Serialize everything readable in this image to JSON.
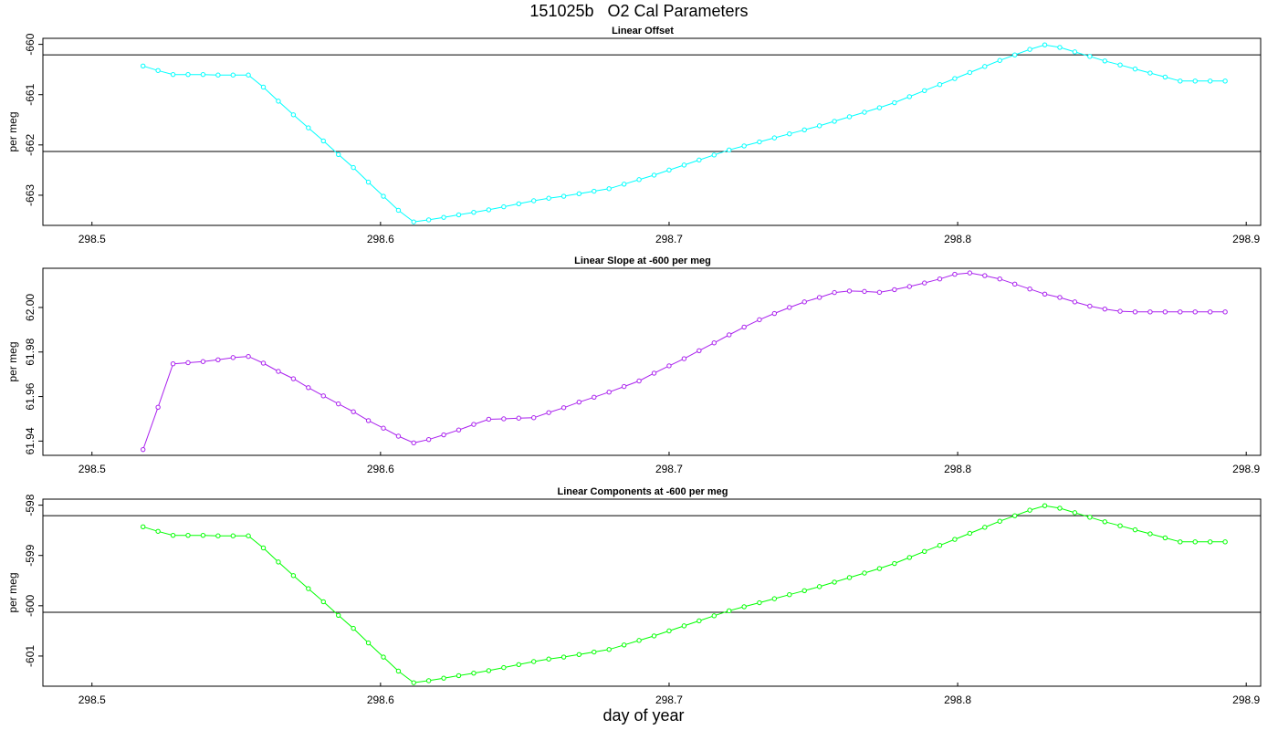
{
  "figure": {
    "title": "151025b   O2 Cal Parameters",
    "xlabel": "day of year"
  },
  "chart_data": [
    {
      "type": "line",
      "title": "Linear Offset",
      "xlabel": "",
      "ylabel": "per meg",
      "xlim": [
        298.483,
        298.905
      ],
      "ylim": [
        -663.6,
        -659.88
      ],
      "xticks": [
        298.5,
        298.6,
        298.7,
        298.8,
        298.9
      ],
      "xtick_labels": [
        "298.5",
        "298.6",
        "298.7",
        "298.8",
        "298.9"
      ],
      "yticks": [
        -663,
        -662,
        -661,
        -660
      ],
      "ytick_labels": [
        "-663",
        "-662",
        "-661",
        "-660"
      ],
      "hlines": [
        -660.21,
        -662.13
      ],
      "grid": false,
      "color": "#00ffff",
      "series": [
        {
          "x": [
            298.5177,
            298.5229,
            298.5281,
            298.5333,
            298.5385,
            298.5437,
            298.5489,
            298.5542,
            298.5594,
            298.5646,
            298.5698,
            298.575,
            298.5802,
            298.5854,
            298.5906,
            298.5958,
            298.601,
            298.6062,
            298.6115,
            298.6167,
            298.6219,
            298.6271,
            298.6323,
            298.6375,
            298.6427,
            298.6479,
            298.6531,
            298.6583,
            298.6635,
            298.6688,
            298.674,
            298.6792,
            298.6844,
            298.6896,
            298.6948,
            298.7,
            298.7052,
            298.7104,
            298.7156,
            298.7208,
            298.726,
            298.7313,
            298.7365,
            298.7417,
            298.7469,
            298.7521,
            298.7573,
            298.7625,
            298.7677,
            298.7729,
            298.7781,
            298.7833,
            298.7885,
            298.7938,
            298.799,
            298.8042,
            298.8094,
            298.8146,
            298.8198,
            298.825,
            298.8302,
            298.8354,
            298.8406,
            298.8458,
            298.851,
            298.8563,
            298.8615,
            298.8667,
            298.8719,
            298.8771,
            298.8823,
            298.8875,
            298.8927
          ],
          "y": [
            -660.43,
            -660.52,
            -660.6,
            -660.6,
            -660.6,
            -660.61,
            -660.61,
            -660.61,
            -660.85,
            -661.13,
            -661.4,
            -661.66,
            -661.92,
            -662.19,
            -662.45,
            -662.74,
            -663.02,
            -663.3,
            -663.53,
            -663.49,
            -663.44,
            -663.39,
            -663.34,
            -663.29,
            -663.23,
            -663.17,
            -663.11,
            -663.06,
            -663.02,
            -662.97,
            -662.92,
            -662.87,
            -662.78,
            -662.69,
            -662.6,
            -662.5,
            -662.4,
            -662.3,
            -662.2,
            -662.1,
            -662.02,
            -661.94,
            -661.86,
            -661.78,
            -661.7,
            -661.62,
            -661.53,
            -661.44,
            -661.35,
            -661.26,
            -661.16,
            -661.04,
            -660.92,
            -660.8,
            -660.68,
            -660.56,
            -660.44,
            -660.32,
            -660.21,
            -660.1,
            -660.01,
            -660.06,
            -660.15,
            -660.24,
            -660.33,
            -660.41,
            -660.49,
            -660.57,
            -660.65,
            -660.73,
            -660.73,
            -660.73,
            -660.73
          ]
        }
      ]
    },
    {
      "type": "line",
      "title": "Linear Slope at -600 per meg",
      "xlabel": "",
      "ylabel": "per meg",
      "xlim": [
        298.483,
        298.905
      ],
      "ylim": [
        61.9336,
        62.0176
      ],
      "xticks": [
        298.5,
        298.6,
        298.7,
        298.8,
        298.9
      ],
      "xtick_labels": [
        "298.5",
        "298.6",
        "298.7",
        "298.8",
        "298.9"
      ],
      "yticks": [
        61.94,
        61.96,
        61.98,
        62.0
      ],
      "ytick_labels": [
        "61.94",
        "61.96",
        "61.98",
        "62.00"
      ],
      "hlines": [],
      "grid": false,
      "color": "#aa22ee",
      "series": [
        {
          "x": [
            298.5177,
            298.5229,
            298.5281,
            298.5333,
            298.5385,
            298.5437,
            298.5489,
            298.5542,
            298.5594,
            298.5646,
            298.5698,
            298.575,
            298.5802,
            298.5854,
            298.5906,
            298.5958,
            298.601,
            298.6062,
            298.6115,
            298.6167,
            298.6219,
            298.6271,
            298.6323,
            298.6375,
            298.6427,
            298.6479,
            298.6531,
            298.6583,
            298.6635,
            298.6688,
            298.674,
            298.6792,
            298.6844,
            298.6896,
            298.6948,
            298.7,
            298.7052,
            298.7104,
            298.7156,
            298.7208,
            298.726,
            298.7313,
            298.7365,
            298.7417,
            298.7469,
            298.7521,
            298.7573,
            298.7625,
            298.7677,
            298.7729,
            298.7781,
            298.7833,
            298.7885,
            298.7938,
            298.799,
            298.8042,
            298.8094,
            298.8146,
            298.8198,
            298.825,
            298.8302,
            298.8354,
            298.8406,
            298.8458,
            298.851,
            298.8563,
            298.8615,
            298.8667,
            298.8719,
            298.8771,
            298.8823,
            298.8875,
            298.8927
          ],
          "y": [
            61.9362,
            61.9552,
            61.9747,
            61.9752,
            61.9757,
            61.9765,
            61.9775,
            61.978,
            61.975,
            61.9713,
            61.968,
            61.964,
            61.9603,
            61.9567,
            61.9532,
            61.9492,
            61.9458,
            61.9422,
            61.9392,
            61.9407,
            61.9428,
            61.945,
            61.9475,
            61.9498,
            61.95,
            61.9503,
            61.9505,
            61.9528,
            61.955,
            61.9575,
            61.9597,
            61.962,
            61.9645,
            61.967,
            61.9705,
            61.9738,
            61.977,
            61.9806,
            61.9841,
            61.9877,
            61.9912,
            61.9945,
            61.9973,
            62.0,
            62.0025,
            62.0045,
            62.0067,
            62.0074,
            62.0072,
            62.0068,
            62.008,
            62.0094,
            62.011,
            62.0128,
            62.0149,
            62.0155,
            62.0143,
            62.0128,
            62.0105,
            62.0083,
            62.006,
            62.0045,
            62.0025,
            62.0006,
            61.9993,
            61.9983,
            61.998,
            61.998,
            61.998,
            61.998,
            61.998,
            61.998,
            61.998
          ]
        }
      ]
    },
    {
      "type": "line",
      "title": "Linear Components at -600 per meg",
      "xlabel": "",
      "ylabel": "per meg",
      "xlim": [
        298.483,
        298.905
      ],
      "ylim": [
        -601.6,
        -597.88
      ],
      "xticks": [
        298.5,
        298.6,
        298.7,
        298.8,
        298.9
      ],
      "xtick_labels": [
        "298.5",
        "298.6",
        "298.7",
        "298.8",
        "298.9"
      ],
      "yticks": [
        -601,
        -600,
        -599,
        -598
      ],
      "ytick_labels": [
        "-601",
        "-600",
        "-599",
        "-598"
      ],
      "hlines": [
        -598.21,
        -600.13
      ],
      "grid": false,
      "color": "#00ff00",
      "series": [
        {
          "x": [
            298.5177,
            298.5229,
            298.5281,
            298.5333,
            298.5385,
            298.5437,
            298.5489,
            298.5542,
            298.5594,
            298.5646,
            298.5698,
            298.575,
            298.5802,
            298.5854,
            298.5906,
            298.5958,
            298.601,
            298.6062,
            298.6115,
            298.6167,
            298.6219,
            298.6271,
            298.6323,
            298.6375,
            298.6427,
            298.6479,
            298.6531,
            298.6583,
            298.6635,
            298.6688,
            298.674,
            298.6792,
            298.6844,
            298.6896,
            298.6948,
            298.7,
            298.7052,
            298.7104,
            298.7156,
            298.7208,
            298.726,
            298.7313,
            298.7365,
            298.7417,
            298.7469,
            298.7521,
            298.7573,
            298.7625,
            298.7677,
            298.7729,
            298.7781,
            298.7833,
            298.7885,
            298.7938,
            298.799,
            298.8042,
            298.8094,
            298.8146,
            298.8198,
            298.825,
            298.8302,
            298.8354,
            298.8406,
            298.8458,
            298.851,
            298.8563,
            298.8615,
            298.8667,
            298.8719,
            298.8771,
            298.8823,
            298.8875,
            298.8927
          ],
          "y": [
            -598.43,
            -598.52,
            -598.6,
            -598.6,
            -598.6,
            -598.61,
            -598.61,
            -598.61,
            -598.85,
            -599.13,
            -599.4,
            -599.66,
            -599.92,
            -600.19,
            -600.45,
            -600.74,
            -601.02,
            -601.3,
            -601.53,
            -601.49,
            -601.44,
            -601.39,
            -601.34,
            -601.29,
            -601.23,
            -601.17,
            -601.11,
            -601.06,
            -601.02,
            -600.97,
            -600.92,
            -600.87,
            -600.78,
            -600.69,
            -600.6,
            -600.5,
            -600.4,
            -600.3,
            -600.2,
            -600.1,
            -600.02,
            -599.94,
            -599.86,
            -599.78,
            -599.7,
            -599.62,
            -599.53,
            -599.44,
            -599.35,
            -599.26,
            -599.16,
            -599.04,
            -598.92,
            -598.8,
            -598.68,
            -598.56,
            -598.44,
            -598.32,
            -598.21,
            -598.1,
            -598.01,
            -598.06,
            -598.15,
            -598.24,
            -598.33,
            -598.41,
            -598.49,
            -598.57,
            -598.65,
            -598.73,
            -598.73,
            -598.73,
            -598.73
          ]
        }
      ]
    }
  ]
}
